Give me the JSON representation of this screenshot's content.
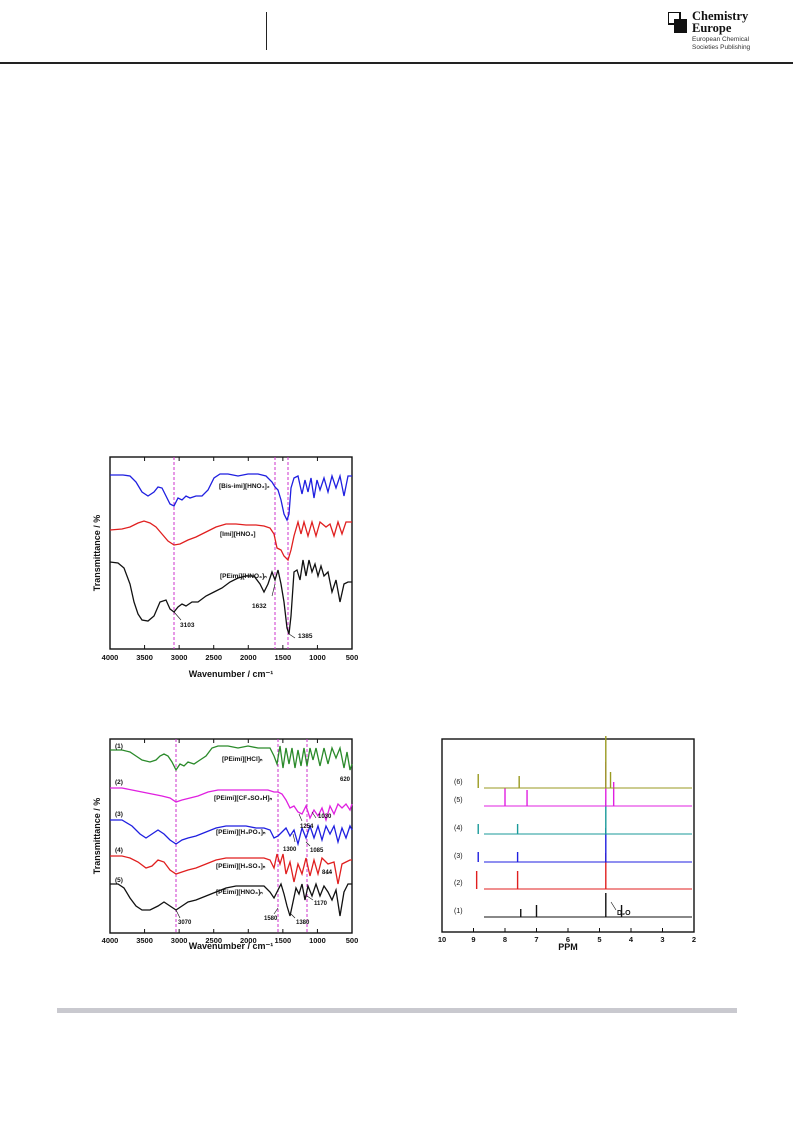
{
  "header": {
    "logo": {
      "title_line1": "Chemistry",
      "title_line2": "Europe",
      "sub_line1": "European Chemical",
      "sub_line2": "Societies Publishing"
    }
  },
  "chart_data": [
    {
      "type": "line",
      "xlabel": "Wavenumber / cm⁻¹",
      "ylabel": "Transmittance / %",
      "xlim": [
        4000,
        500
      ],
      "x_ticks": [
        "4000",
        "3500",
        "3000",
        "2500",
        "2000",
        "1500",
        "1000",
        "500"
      ],
      "series": [
        {
          "name": "[Bis-imi][HNO₃]₂",
          "color": "#1f1fe0"
        },
        {
          "name": "[Imi][HNO₃]",
          "color": "#e01f1f"
        },
        {
          "name": "[PEimi][HNO₃]ₙ",
          "color": "#111111"
        }
      ],
      "annotations": [
        "1632",
        "3103",
        "1385"
      ],
      "reference_lines": [
        3103,
        1632,
        1385
      ]
    },
    {
      "type": "line",
      "xlabel": "Wavenumber / cm⁻¹",
      "ylabel": "Transmittance / %",
      "xlim": [
        4000,
        500
      ],
      "x_ticks": [
        "4000",
        "3500",
        "3000",
        "2500",
        "2000",
        "1500",
        "1000",
        "500"
      ],
      "series": [
        {
          "name": "[PEimi][HCl]ₙ",
          "index": "(1)",
          "color": "#2a8a2a"
        },
        {
          "name": "[PEimi][CF₃SO₃H]ₙ",
          "index": "(2)",
          "color": "#e020e0"
        },
        {
          "name": "[PEimi][H₃PO₄]ₙ",
          "index": "(3)",
          "color": "#1f1fe0"
        },
        {
          "name": "[PEimi][H₂SO₄]ₙ",
          "index": "(4)",
          "color": "#e01f1f"
        },
        {
          "name": "[PEimi][HNO₃]ₙ",
          "index": "(5)",
          "color": "#111111"
        }
      ],
      "annotations": [
        "620",
        "1254",
        "1030",
        "1300",
        "1085",
        "844",
        "1170",
        "3070",
        "1580",
        "1380"
      ],
      "reference_lines": [
        3070,
        1580,
        1170
      ]
    },
    {
      "type": "line",
      "xlabel": "PPM",
      "ylabel": "",
      "xlim": [
        10,
        2
      ],
      "x_ticks": [
        "10",
        "9",
        "8",
        "7",
        "6",
        "5",
        "4",
        "3",
        "2"
      ],
      "series": [
        {
          "index": "(1)",
          "color": "#111111",
          "peaks": [
            7.5,
            7.0,
            4.8,
            4.3
          ]
        },
        {
          "index": "(2)",
          "color": "#e01f1f",
          "peaks": [
            8.9,
            7.6,
            4.8
          ]
        },
        {
          "index": "(3)",
          "color": "#1f1fe0",
          "peaks": [
            8.85,
            7.6,
            4.8
          ]
        },
        {
          "index": "(4)",
          "color": "#1a9a9a",
          "peaks": [
            8.85,
            7.6,
            4.8
          ]
        },
        {
          "index": "(5)",
          "color": "#e020e0",
          "peaks": [
            8.0,
            7.3,
            4.8,
            4.55
          ]
        },
        {
          "index": "(6)",
          "color": "#9a9a20",
          "peaks": [
            8.85,
            7.55,
            4.8,
            4.65
          ]
        }
      ],
      "annotations": [
        "D₂O"
      ]
    }
  ]
}
